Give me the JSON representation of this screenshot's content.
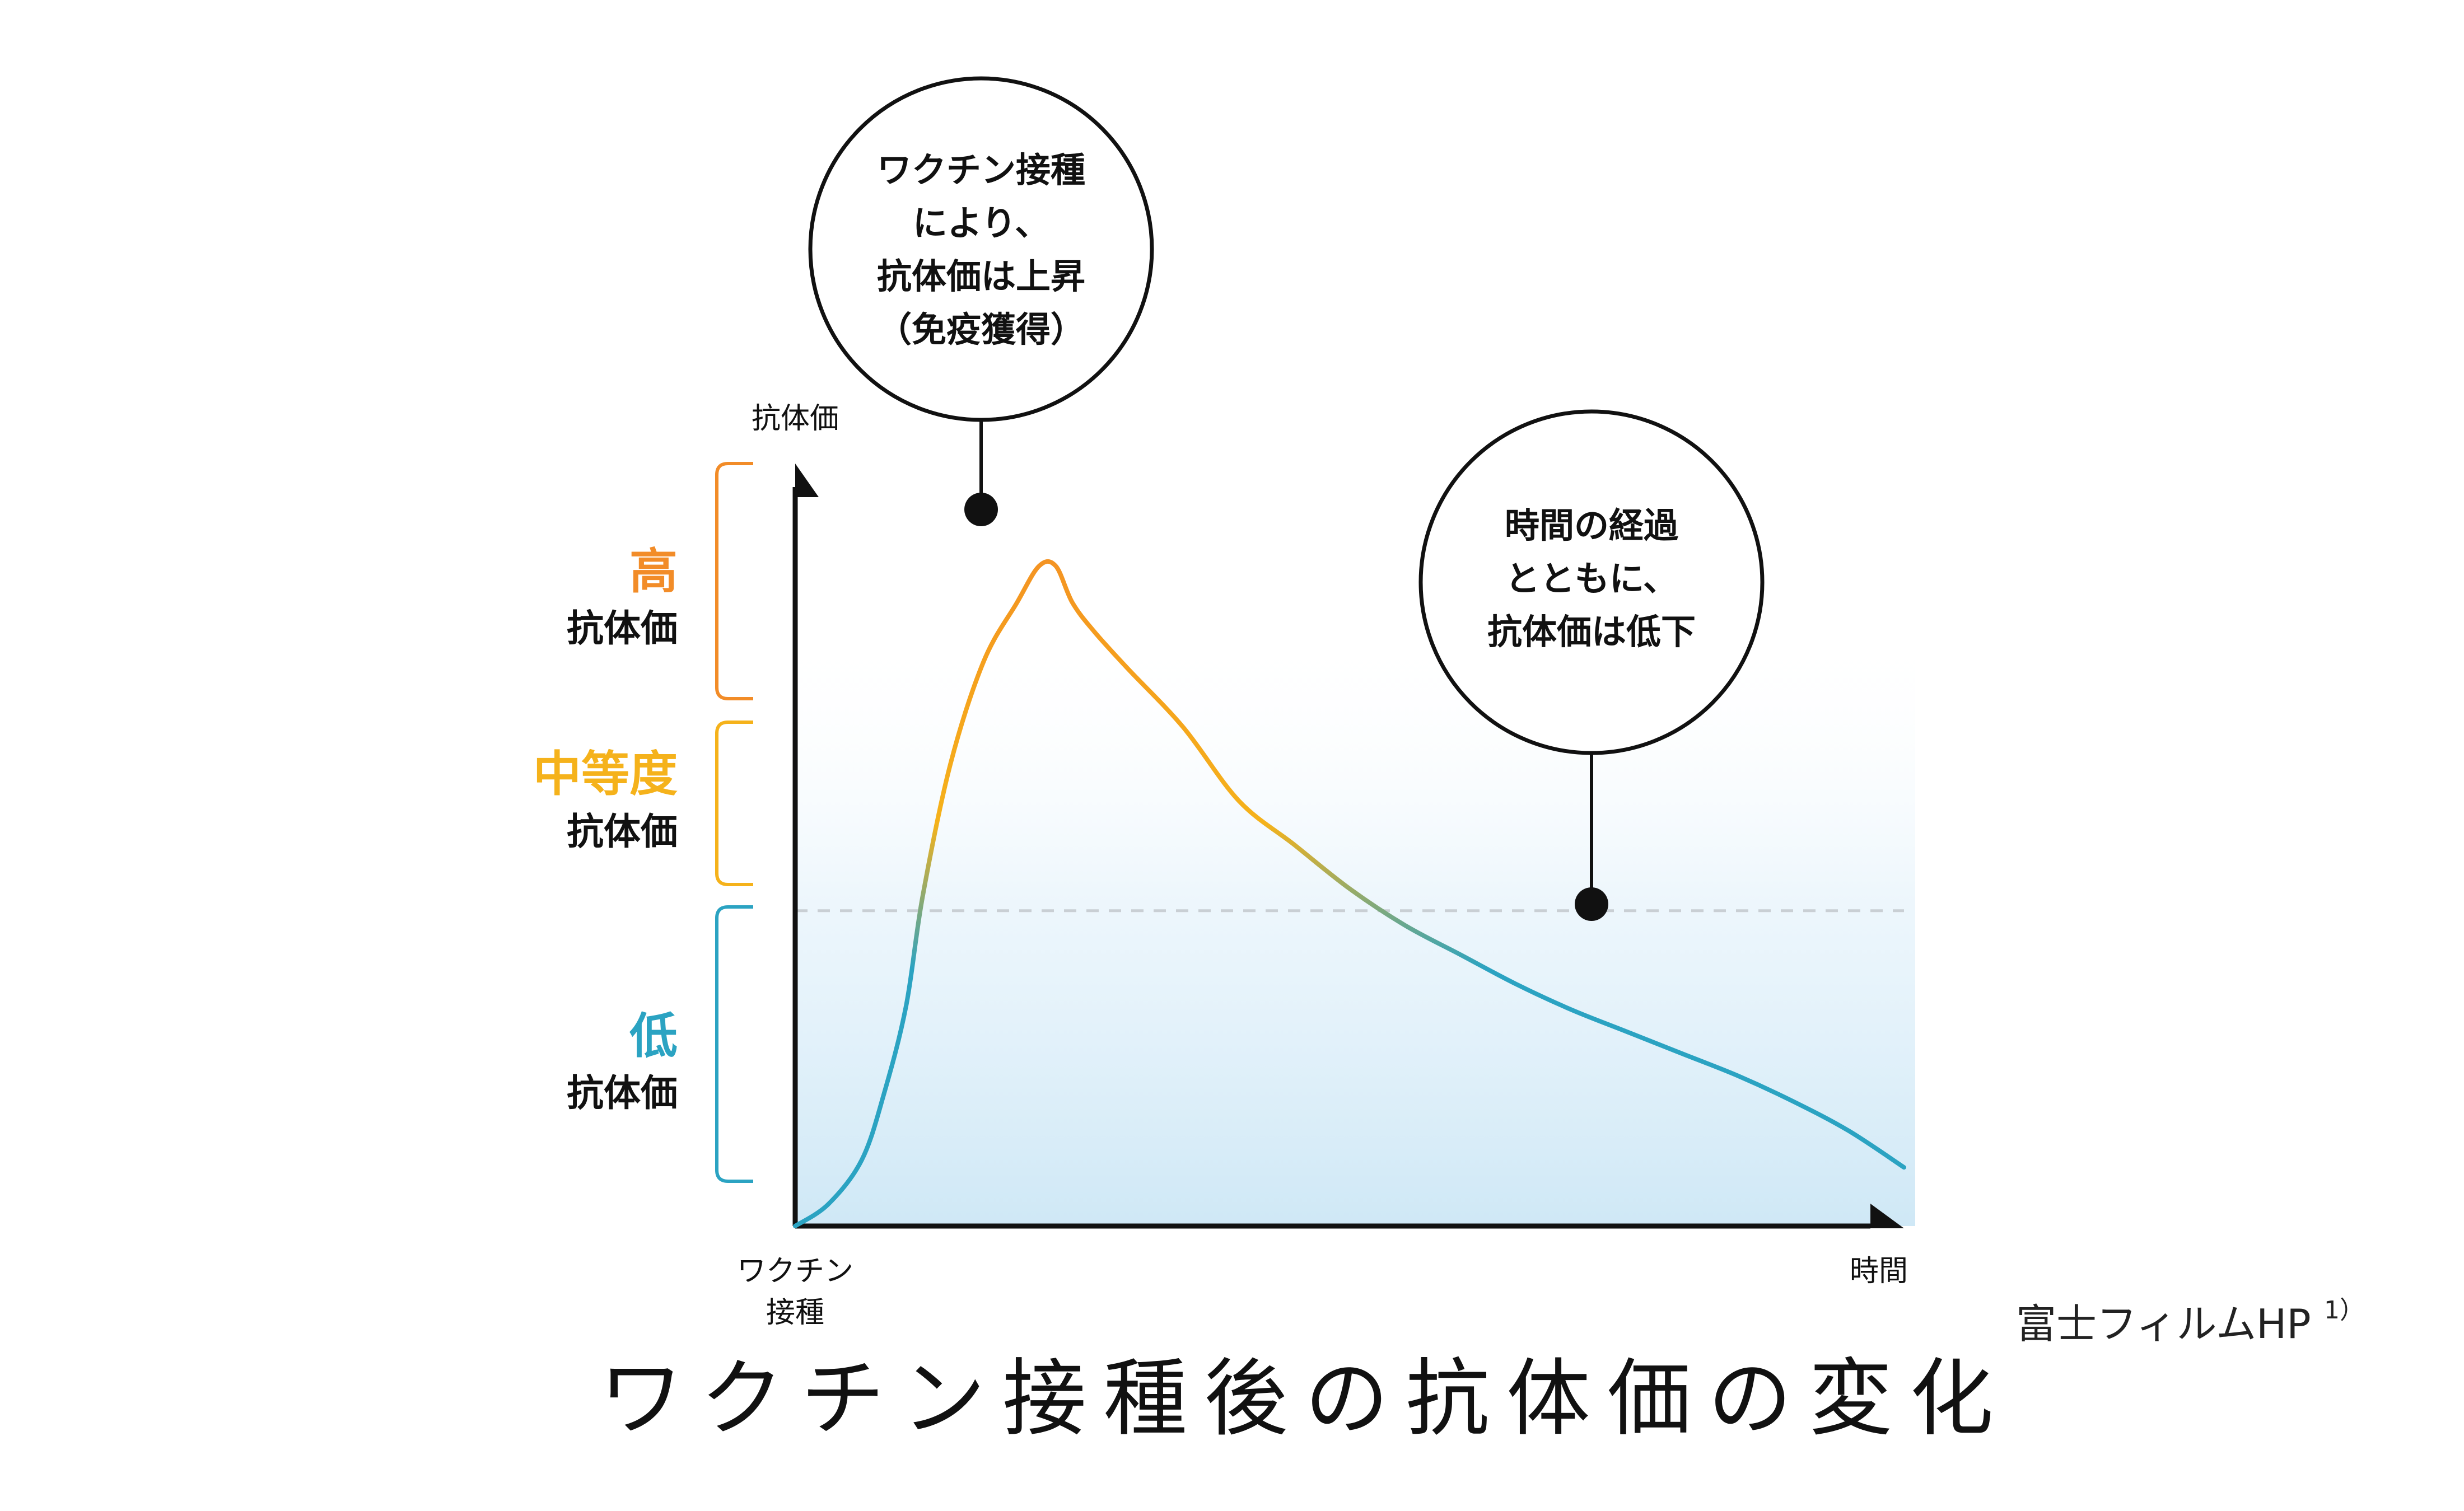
{
  "chart_data": {
    "type": "line",
    "y_axis_label": "抗体価",
    "x_start_label": [
      "ワクチン",
      "接種"
    ],
    "x_end_label": "時間",
    "bands": [
      {
        "key": "high",
        "main": "高",
        "sub": "抗体価",
        "color": "#f28c28"
      },
      {
        "key": "medium",
        "main": "中等度",
        "sub": "抗体価",
        "color": "#f5b21b"
      },
      {
        "key": "low",
        "main": "低",
        "sub": "抗体価",
        "color": "#2ba3c2"
      }
    ],
    "curve": {
      "x": [
        0,
        0.03,
        0.06,
        0.08,
        0.1,
        0.115,
        0.14,
        0.17,
        0.2,
        0.22,
        0.235,
        0.25,
        0.27,
        0.3,
        0.35,
        0.4,
        0.45,
        0.5,
        0.55,
        0.6,
        0.65,
        0.7,
        0.75,
        0.8,
        0.85,
        0.9,
        0.95,
        1.0
      ],
      "y": [
        0.0,
        0.03,
        0.09,
        0.18,
        0.3,
        0.45,
        0.63,
        0.77,
        0.85,
        0.9,
        0.9,
        0.85,
        0.81,
        0.76,
        0.68,
        0.58,
        0.52,
        0.46,
        0.41,
        0.37,
        0.33,
        0.295,
        0.265,
        0.235,
        0.205,
        0.17,
        0.13,
        0.08
      ]
    },
    "threshold_y": 0.43,
    "colors": {
      "high": "#f28c28",
      "medium": "#f5b21b",
      "low": "#2ba3c2"
    },
    "grid": false,
    "legend": "none"
  },
  "callouts": [
    {
      "lines": [
        "ワクチン接種",
        "により、",
        "抗体価は上昇",
        "（免疫獲得）"
      ]
    },
    {
      "lines": [
        "時間の経過",
        "とともに、",
        "抗体価は低下"
      ]
    }
  ],
  "title": "ワクチン接種後の抗体価の変化",
  "source": "富士フィルムHP",
  "source_note": "1）"
}
